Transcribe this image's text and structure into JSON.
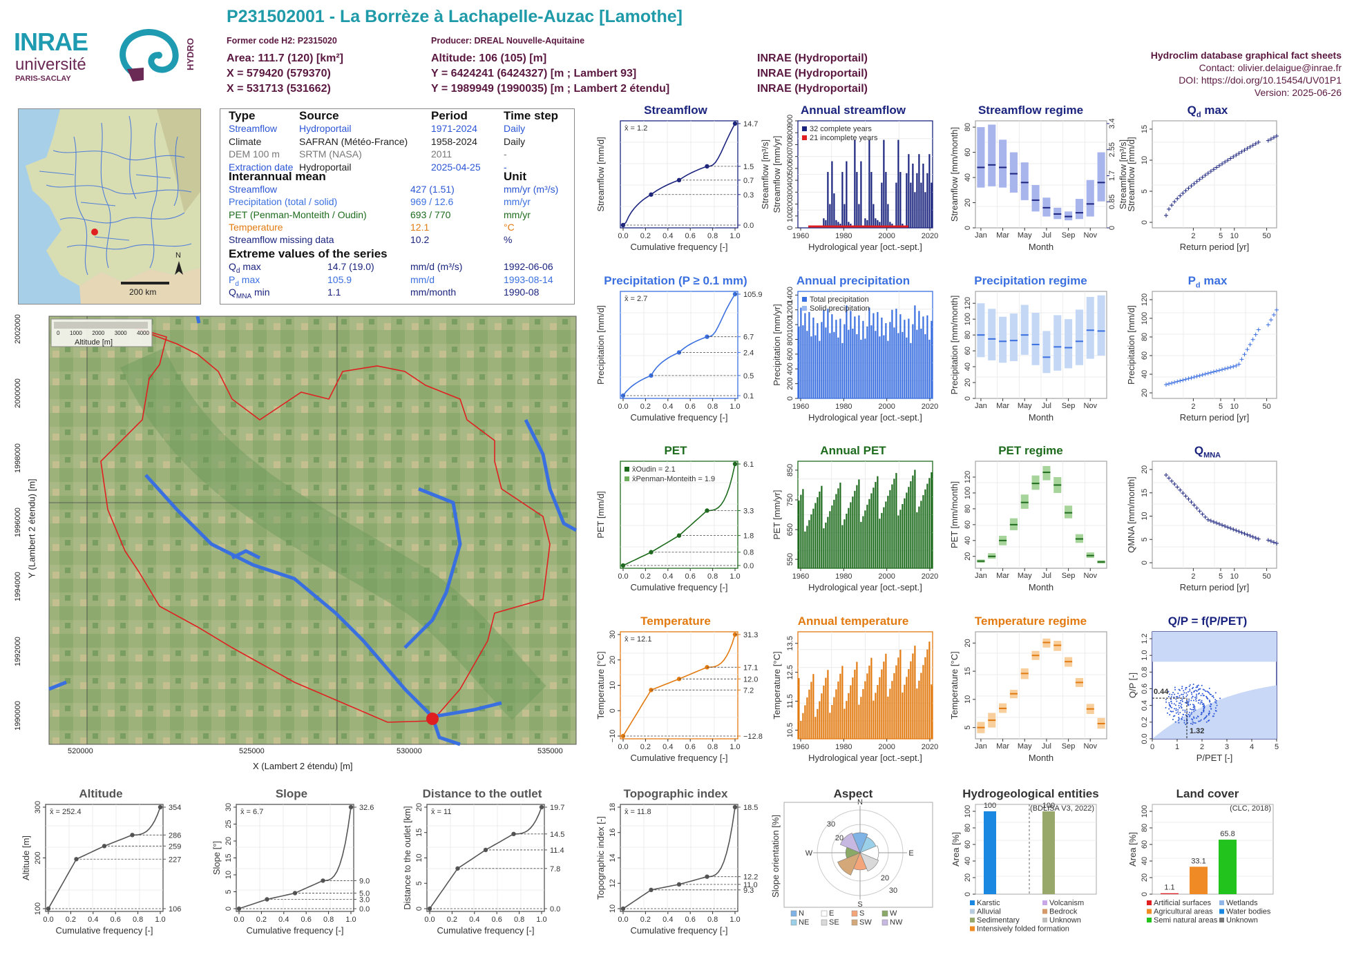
{
  "header": {
    "station_title": "P231502001 - La Borrèze à Lachapelle-Auzac [Lamothe]",
    "former_code": "Former code H2: P2315020",
    "producer": "Producer: DREAL Nouvelle-Aquitaine",
    "area": "Area: 111.7 (120) [km²]",
    "altitude": "Altitude: 106 (105) [m]",
    "x_coord": "X = 579420 (579370)",
    "y_coord": "Y = 6424241 (6424327) [m ; Lambert 93]",
    "x2_coord": "X = 531713 (531662)",
    "y2_coord": "Y = 1989949 (1990035) [m ; Lambert 2 étendu]",
    "source_1": "INRAE (Hydroportail)",
    "source_2": "INRAE (Hydroportail)",
    "source_3": "INRAE (Hydroportail)",
    "db_title": "Hydroclim database graphical fact sheets",
    "contact": "Contact: olivier.delaigue@inrae.fr",
    "doi": "DOI: https://doi.org/10.15454/UV01P1",
    "version": "Version: 2025-06-26"
  },
  "logos": {
    "inrae": "INRAE",
    "univ": "université",
    "paris_saclay": "PARIS-SACLAY",
    "hydro": "HYDRO"
  },
  "inset_map": {
    "scale_label": "200 km",
    "north": "N"
  },
  "table": {
    "headers": [
      "Type",
      "Source",
      "Period",
      "Time step"
    ],
    "rows": [
      {
        "type": "Streamflow",
        "source": "Hydroportail",
        "period": "1971-2024",
        "step": "Daily",
        "color": "#2b55d6"
      },
      {
        "type": "Climate",
        "source": "SAFRAN (Météo-France)",
        "period": "1958-2024",
        "step": "Daily",
        "color": "#222222"
      },
      {
        "type": "DEM 100 m",
        "source": "SRTM (NASA)",
        "period": "2011",
        "step": "-",
        "color": "#777777"
      },
      {
        "type": "Extraction date",
        "source": "Hydroportail",
        "period": "2025-04-25",
        "step": "-",
        "color": "#2b55d6"
      }
    ],
    "mean_title": "Interannual mean",
    "unit_title": "Unit",
    "means": [
      {
        "label": "Streamflow",
        "value": "427 (1.51)",
        "unit": "mm/yr (m³/s)",
        "color": "#2b55d6"
      },
      {
        "label": "Precipitation (total / solid)",
        "value": "969 / 12.6",
        "unit": "mm/yr",
        "color": "#3a6fe0"
      },
      {
        "label": "PET (Penman-Monteith / Oudin)",
        "value": "693 / 770",
        "unit": "mm/yr",
        "color": "#1d6b1d"
      },
      {
        "label": "Temperature",
        "value": "12.1",
        "unit": "°C",
        "color": "#e27a10"
      },
      {
        "label": "Streamflow missing data",
        "value": "10.2",
        "unit": "%",
        "color": "#1a237e"
      }
    ],
    "extreme_title": "Extreme values of the series",
    "extremes": [
      {
        "label": "Q",
        "sub": "d",
        "suffix": " max",
        "value": "14.7 (19.0)",
        "unit": "mm/d (m³/s)",
        "date": "1992-06-06",
        "color": "#1a237e"
      },
      {
        "label": "P",
        "sub": "d",
        "suffix": " max",
        "value": "105.9",
        "unit": "mm/d",
        "date": "1993-08-14",
        "color": "#3a6fe0"
      },
      {
        "label": "Q",
        "sub": "MNA",
        "suffix": " min",
        "value": "1.1",
        "unit": "mm/month",
        "date": "1990-08",
        "color": "#1a237e"
      }
    ]
  },
  "map": {
    "legend_title": "Altitude [m]",
    "legend_ticks": [
      "0",
      "1000",
      "2000",
      "3000",
      "4000"
    ],
    "xlabel": "X (Lambert 2 étendu) [m]",
    "ylabel": "Y (Lambert 2 étendu) [m]",
    "xticks": [
      "520000",
      "525000",
      "530000",
      "535000"
    ],
    "yticks": [
      "1990000",
      "1992000",
      "1994000",
      "1996000",
      "1998000",
      "2000000",
      "2002000"
    ]
  },
  "colors": {
    "navy": "#1a237e",
    "blue": "#3a6fe0",
    "green": "#1d6b1d",
    "orange": "#e27a10",
    "gray": "#555555",
    "outline": "#e02020"
  },
  "chart_data": [
    {
      "id": "streamflow_fdc",
      "type": "line",
      "title": "Streamflow",
      "xlabel": "Cumulative frequency [-]",
      "ylabel": "Streamflow [mm/d]",
      "ylabel2": "Streamflow [m³/s]",
      "mean_label": "x̄ = 1.2",
      "right_ticks": [
        "14.7",
        "1.5",
        "0.7",
        "0.3",
        "0.0"
      ],
      "xticks": [
        "0.0",
        "0.2",
        "0.4",
        "0.6",
        "0.8",
        "1.0"
      ],
      "x": [
        0,
        0.25,
        0.5,
        0.75,
        1.0
      ],
      "y": [
        0.0,
        0.3,
        0.7,
        1.5,
        14.7
      ]
    },
    {
      "id": "annual_streamflow",
      "type": "bar",
      "title": "Annual streamflow",
      "xlabel": "Hydrological year [oct.-sept.]",
      "ylabel": "Streamflow [mm/yr]",
      "legend": [
        "32 complete years",
        "21 incomplete years"
      ],
      "xticks": [
        "1960",
        "1980",
        "2000",
        "2020"
      ],
      "yticks": [
        "0",
        "100",
        "200",
        "300",
        "400",
        "500",
        "600",
        "700",
        "800",
        "900"
      ],
      "ylim": [
        0,
        900
      ]
    },
    {
      "id": "streamflow_regime",
      "type": "bar",
      "title": "Streamflow regime",
      "xlabel": "Month",
      "ylabel": "Streamflow [mm/month]",
      "ylabel2": "Streamflow [m³/s]",
      "categories": [
        "Jan",
        "Feb",
        "Mar",
        "Apr",
        "May",
        "Jun",
        "Jul",
        "Aug",
        "Sep",
        "Oct",
        "Nov",
        "Dec"
      ],
      "xticks": [
        "Jan",
        "Mar",
        "May",
        "Jul",
        "Sep",
        "Nov"
      ],
      "yticks": [
        "0",
        "20",
        "40",
        "60",
        "80"
      ],
      "right_ticks": [
        "0",
        "0.85",
        "1.7",
        "2.55",
        "3.4"
      ],
      "median": [
        48,
        50,
        48,
        43,
        36,
        22,
        16,
        11,
        9,
        12,
        19,
        36
      ],
      "low": [
        32,
        33,
        32,
        28,
        22,
        13,
        9,
        7,
        6,
        7,
        9,
        21
      ],
      "high": [
        80,
        82,
        70,
        60,
        52,
        34,
        24,
        16,
        13,
        23,
        38,
        60
      ],
      "ylim": [
        0,
        85
      ]
    },
    {
      "id": "qd_max",
      "type": "scatter",
      "title": "Qd max",
      "xlabel": "Return period [yr]",
      "ylabel": "Streamflow [mm/d]",
      "xticks": [
        "2",
        "5",
        "10",
        "50"
      ],
      "yticks": [
        "0",
        "5",
        "10",
        "15"
      ]
    },
    {
      "id": "precip_fdc",
      "type": "line",
      "title": "Precipitation (P ≥ 0.1 mm)",
      "xlabel": "Cumulative frequency [-]",
      "ylabel": "Precipitation [mm/d]",
      "mean_label": "x̄ = 2.7",
      "right_ticks": [
        "105.9",
        "6.7",
        "2.4",
        "0.5",
        "0.1"
      ],
      "xticks": [
        "0.0",
        "0.2",
        "0.4",
        "0.6",
        "0.8",
        "1.0"
      ],
      "x": [
        0,
        0.25,
        0.5,
        0.75,
        1.0
      ],
      "y": [
        0.1,
        0.5,
        2.4,
        6.7,
        105.9
      ]
    },
    {
      "id": "annual_precip",
      "type": "bar",
      "title": "Annual precipitation",
      "xlabel": "Hydrological year [oct.-sept.]",
      "ylabel": "Precipitation [mm/yr]",
      "legend": [
        "Total precipitation",
        "Solid precipitation"
      ],
      "xticks": [
        "1960",
        "1980",
        "2000",
        "2020"
      ],
      "yticks": [
        "0",
        "200",
        "400",
        "600",
        "800",
        "1000",
        "1200",
        "1400"
      ],
      "ylim": [
        0,
        1450
      ]
    },
    {
      "id": "precip_regime",
      "type": "bar",
      "title": "Precipitation regime",
      "xlabel": "Month",
      "ylabel": "Precipitation [mm/month]",
      "categories": [
        "Jan",
        "Feb",
        "Mar",
        "Apr",
        "May",
        "Jun",
        "Jul",
        "Aug",
        "Sep",
        "Oct",
        "Nov",
        "Dec"
      ],
      "xticks": [
        "Jan",
        "Mar",
        "May",
        "Jul",
        "Sep",
        "Nov"
      ],
      "yticks": [
        "0",
        "20",
        "40",
        "60",
        "80",
        "100",
        "120"
      ],
      "median": [
        80,
        75,
        72,
        73,
        80,
        68,
        52,
        65,
        64,
        72,
        86,
        85
      ],
      "low": [
        52,
        48,
        45,
        47,
        55,
        42,
        32,
        35,
        38,
        42,
        50,
        54
      ],
      "high": [
        120,
        113,
        103,
        107,
        118,
        108,
        85,
        105,
        100,
        112,
        128,
        130
      ],
      "ylim": [
        0,
        135
      ]
    },
    {
      "id": "pd_max",
      "type": "scatter",
      "title": "Pd max",
      "xlabel": "Return period [yr]",
      "ylabel": "Precipitation [mm/d]",
      "xticks": [
        "2",
        "5",
        "10",
        "50"
      ],
      "yticks": [
        "20",
        "40",
        "60",
        "80",
        "100",
        "120"
      ]
    },
    {
      "id": "pet_fdc",
      "type": "line",
      "title": "PET",
      "xlabel": "Cumulative frequency [-]",
      "ylabel": "PET [mm/d]",
      "legend": [
        "x̄Oudin = 2.1",
        "x̄Penman-Monteith = 1.9"
      ],
      "right_ticks": [
        "6.1",
        "3.3",
        "1.8",
        "0.8",
        "0.0"
      ],
      "xticks": [
        "0.0",
        "0.2",
        "0.4",
        "0.6",
        "0.8",
        "1.0"
      ],
      "x": [
        0,
        0.25,
        0.5,
        0.75,
        1.0
      ],
      "y": [
        0.0,
        0.8,
        1.8,
        3.3,
        6.1
      ]
    },
    {
      "id": "annual_pet",
      "type": "bar",
      "title": "Annual PET",
      "xlabel": "Hydrological year [oct.-sept.]",
      "ylabel": "PET [mm/yr]",
      "xticks": [
        "1960",
        "1980",
        "2000",
        "2020"
      ],
      "yticks": [
        "550",
        "650",
        "750",
        "850"
      ],
      "ylim": [
        520,
        880
      ]
    },
    {
      "id": "pet_regime",
      "type": "bar",
      "title": "PET regime",
      "xlabel": "Month",
      "ylabel": "PET [mm/month]",
      "categories": [
        "Jan",
        "Feb",
        "Mar",
        "Apr",
        "May",
        "Jun",
        "Jul",
        "Aug",
        "Sep",
        "Oct",
        "Nov",
        "Dec"
      ],
      "xticks": [
        "Jan",
        "Mar",
        "May",
        "Jul",
        "Sep",
        "Nov"
      ],
      "yticks": [
        "20",
        "40",
        "60",
        "80",
        "100",
        "120"
      ],
      "median": [
        14,
        20,
        40,
        60,
        88,
        112,
        126,
        110,
        75,
        42,
        21,
        13
      ],
      "low": [
        12,
        17,
        34,
        53,
        80,
        104,
        116,
        100,
        68,
        37,
        18,
        11
      ],
      "high": [
        16,
        24,
        46,
        68,
        98,
        122,
        134,
        120,
        84,
        48,
        25,
        15
      ],
      "ylim": [
        5,
        140
      ]
    },
    {
      "id": "qmna",
      "type": "scatter",
      "title": "QMNA",
      "xlabel": "Return period [yr]",
      "ylabel": "QMNA [mm/month]",
      "xticks": [
        "2",
        "5",
        "10",
        "50"
      ],
      "yticks": [
        "0",
        "5",
        "10",
        "15",
        "20"
      ]
    },
    {
      "id": "temp_fdc",
      "type": "line",
      "title": "Temperature",
      "xlabel": "Cumulative frequency [-]",
      "ylabel": "Temperature [°C]",
      "mean_label": "x̄ = 12.1",
      "right_ticks": [
        "31.3",
        "17.1",
        "12.0",
        "7.2",
        "−12.8"
      ],
      "xticks": [
        "0.0",
        "0.2",
        "0.4",
        "0.6",
        "0.8",
        "1.0"
      ],
      "yticks": [
        "−10",
        "0",
        "10",
        "20",
        "30"
      ],
      "x": [
        0,
        0.25,
        0.5,
        0.75,
        1.0
      ],
      "y": [
        -12.8,
        7.2,
        12.0,
        17.1,
        31.3
      ]
    },
    {
      "id": "annual_temp",
      "type": "bar",
      "title": "Annual temperature",
      "xlabel": "Hydrological year [oct.-sept.]",
      "ylabel": "Temperature [°C]",
      "xticks": [
        "1960",
        "1980",
        "2000",
        "2020"
      ],
      "yticks": [
        "10.5",
        "11.5",
        "12.5",
        "13.5"
      ],
      "ylim": [
        10.2,
        13.9
      ]
    },
    {
      "id": "temp_regime",
      "type": "bar",
      "title": "Temperature regime",
      "xlabel": "Month",
      "ylabel": "Temperature [°C]",
      "categories": [
        "Jan",
        "Feb",
        "Mar",
        "Apr",
        "May",
        "Jun",
        "Jul",
        "Aug",
        "Sep",
        "Oct",
        "Nov",
        "Dec"
      ],
      "xticks": [
        "Jan",
        "Mar",
        "May",
        "Jul",
        "Sep",
        "Nov"
      ],
      "yticks": [
        "5",
        "10",
        "15",
        "20"
      ],
      "median": [
        5,
        6.3,
        8.4,
        11,
        14.6,
        17.8,
        20.1,
        19.6,
        16.7,
        13,
        8.3,
        5.7
      ],
      "low": [
        4,
        5,
        7.6,
        10.2,
        13.6,
        17,
        19.2,
        18.6,
        15.8,
        12.2,
        7.4,
        4.8
      ],
      "high": [
        6,
        7.6,
        9.3,
        11.7,
        15.5,
        18.6,
        20.8,
        20.4,
        17.5,
        13.8,
        9.2,
        6.7
      ],
      "ylim": [
        3,
        22
      ]
    },
    {
      "id": "qp_ppet",
      "type": "scatter",
      "title": "Q/P = f(P/PET)",
      "xlabel": "P/PET [-]",
      "ylabel": "Q/P [-]",
      "xticks": [
        "0",
        "1",
        "2",
        "3",
        "4",
        "5"
      ],
      "yticks": [
        "0.0",
        "0.2",
        "0.4",
        "0.6",
        "0.8",
        "1.0",
        "1.2"
      ],
      "annot_y": "0.44",
      "annot_x": "1.32"
    },
    {
      "id": "altitude_hyps",
      "type": "line",
      "title": "Altitude",
      "xlabel": "Cumulative frequency [-]",
      "ylabel": "Altitude [m]",
      "mean_label": "x̄ = 252.4",
      "right_ticks": [
        "354",
        "286",
        "259",
        "227",
        "106"
      ],
      "xticks": [
        "0.0",
        "0.2",
        "0.4",
        "0.6",
        "0.8",
        "1.0"
      ],
      "yticks": [
        "100",
        "200",
        "300"
      ],
      "x": [
        0,
        0.25,
        0.5,
        0.75,
        1.0
      ],
      "y": [
        106,
        227,
        259,
        286,
        354
      ]
    },
    {
      "id": "slope",
      "type": "line",
      "title": "Slope",
      "xlabel": "Cumulative frequency [-]",
      "ylabel": "Slope [°]",
      "mean_label": "x̄ = 6.7",
      "right_ticks": [
        "32.6",
        "9.0",
        "5.0",
        "3.0",
        "0.0"
      ],
      "xticks": [
        "0.0",
        "0.2",
        "0.4",
        "0.6",
        "0.8",
        "1.0"
      ],
      "yticks": [
        "0",
        "5",
        "10",
        "15",
        "20",
        "25",
        "30"
      ],
      "x": [
        0,
        0.25,
        0.5,
        0.75,
        1.0
      ],
      "y": [
        0,
        3.0,
        5.0,
        9.0,
        32.6
      ]
    },
    {
      "id": "distance_outlet",
      "type": "line",
      "title": "Distance to the outlet",
      "xlabel": "Cumulative frequency [-]",
      "ylabel": "Distance to the outlet [km]",
      "mean_label": "x̄ = 11",
      "right_ticks": [
        "19.7",
        "14.5",
        "11.4",
        "7.8",
        "0.0"
      ],
      "xticks": [
        "0.0",
        "0.2",
        "0.4",
        "0.6",
        "0.8",
        "1.0"
      ],
      "yticks": [
        "0",
        "5",
        "10",
        "15",
        "20"
      ],
      "x": [
        0,
        0.25,
        0.5,
        0.75,
        1.0
      ],
      "y": [
        0,
        7.8,
        11.4,
        14.5,
        19.7
      ]
    },
    {
      "id": "topo_index",
      "type": "line",
      "title": "Topographic index",
      "xlabel": "Cumulative frequency [-]",
      "ylabel": "Topographic index [-]",
      "mean_label": "x̄ = 11.8",
      "right_ticks": [
        "18.5",
        "12.2",
        "11.0",
        "9.3"
      ],
      "xticks": [
        "0.0",
        "0.2",
        "0.4",
        "0.6",
        "0.8",
        "1.0"
      ],
      "yticks": [
        "10",
        "12",
        "14",
        "16",
        "18"
      ],
      "x": [
        0,
        0.25,
        0.5,
        0.75,
        1.0
      ],
      "y": [
        9.3,
        11.0,
        11.5,
        12.2,
        18.5
      ]
    },
    {
      "id": "aspect",
      "type": "pie",
      "title": "Aspect",
      "ylabel": "Slope orientation [%]",
      "directions": [
        "N",
        "E",
        "S",
        "W"
      ],
      "rings": [
        "20",
        "30"
      ],
      "legend": [
        "N",
        "E",
        "S",
        "W",
        "NE",
        "SE",
        "SW",
        "NW"
      ],
      "legend_colors": [
        "#7fb2e5",
        "#ffffff",
        "#f4a57a",
        "#8aa866",
        "#9ad0e8",
        "#d9d9d9",
        "#d4a878",
        "#c6b8e0"
      ],
      "values": [
        14,
        13,
        12,
        10,
        12,
        14,
        17,
        15
      ]
    },
    {
      "id": "hydrogeology",
      "type": "bar",
      "title": "Hydrogeological entities",
      "ylabel": "Area [%]",
      "source": "(BDLISA V3, 2022)",
      "yticks": [
        "0",
        "20",
        "40",
        "60",
        "80",
        "100"
      ],
      "values": [
        100,
        100
      ],
      "value_labels": [
        "100",
        "100"
      ],
      "bar_colors": [
        "#1a88e0",
        "#98a86a"
      ],
      "legend": [
        "Karstic",
        "Volcanism",
        "Alluvial",
        "Bedrock",
        "Sedimentary",
        "Unknown",
        "Intensively folded formation"
      ],
      "legend_colors": [
        "#1a88e0",
        "#c7a7e6",
        "#b8cce0",
        "#d49a6a",
        "#98a86a",
        "#bdbdbd",
        "#f08a24"
      ]
    },
    {
      "id": "land_cover",
      "type": "bar",
      "title": "Land cover",
      "ylabel": "Area [%]",
      "source": "(CLC, 2018)",
      "yticks": [
        "0",
        "20",
        "40",
        "60",
        "80",
        "100"
      ],
      "values": [
        1.1,
        33.1,
        65.8
      ],
      "value_labels": [
        "1.1",
        "33.1",
        "65.8"
      ],
      "bar_colors": [
        "#e02020",
        "#f08a24",
        "#22c31c"
      ],
      "legend": [
        "Artificial surfaces",
        "Wetlands",
        "Agricultural areas",
        "Water bodies",
        "Semi natural areas",
        "Unknown"
      ],
      "legend_colors": [
        "#e02020",
        "#8fb6e6",
        "#f08a24",
        "#1a88e0",
        "#22c31c",
        "#777777"
      ]
    }
  ]
}
